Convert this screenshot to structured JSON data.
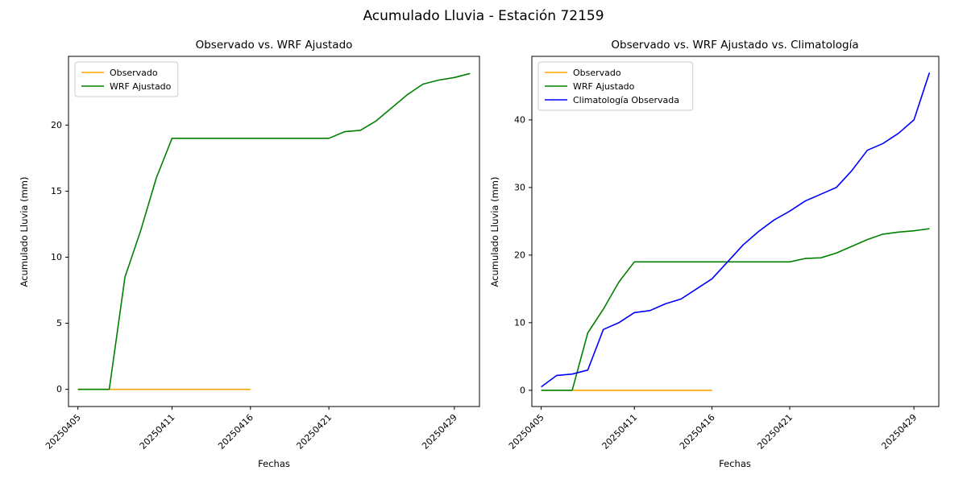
{
  "figure": {
    "title": "Acumulado Lluvia - Estación 72159"
  },
  "chart_data": [
    {
      "type": "line",
      "title": "Observado vs. WRF Ajustado",
      "xlabel": "Fechas",
      "ylabel": "Acumulado Lluvia (mm)",
      "grid": false,
      "legend_position": "upper left",
      "x_dates": [
        "20250405",
        "20250406",
        "20250407",
        "20250408",
        "20250409",
        "20250410",
        "20250411",
        "20250412",
        "20250413",
        "20250414",
        "20250415",
        "20250416",
        "20250417",
        "20250418",
        "20250419",
        "20250420",
        "20250421",
        "20250422",
        "20250423",
        "20250424",
        "20250425",
        "20250426",
        "20250427",
        "20250428",
        "20250429",
        "20250430"
      ],
      "xticks": [
        {
          "label": "20250405",
          "index": 0
        },
        {
          "label": "20250411",
          "index": 6
        },
        {
          "label": "20250416",
          "index": 11
        },
        {
          "label": "20250421",
          "index": 16
        },
        {
          "label": "20250429",
          "index": 24
        }
      ],
      "yticks": [
        0,
        5,
        10,
        15,
        20
      ],
      "xlim": [
        -0.6,
        25.6
      ],
      "ylim": [
        -1.3,
        25.2
      ],
      "series": [
        {
          "name": "Observado",
          "color": "#ffa500",
          "values": [
            0,
            0,
            0,
            0,
            0,
            0,
            0,
            0,
            0,
            0,
            0,
            0
          ]
        },
        {
          "name": "WRF Ajustado",
          "color": "#008000",
          "values": [
            0,
            0,
            0,
            8.5,
            12,
            16,
            19,
            19,
            19,
            19,
            19,
            19,
            19,
            19,
            19,
            19,
            19,
            19.5,
            19.6,
            20.3,
            21.3,
            22.3,
            23.1,
            23.4,
            23.6,
            23.9
          ]
        }
      ]
    },
    {
      "type": "line",
      "title": "Observado vs. WRF Ajustado vs. Climatología",
      "xlabel": "Fechas",
      "ylabel": "Acumulado Lluvia (mm)",
      "grid": false,
      "legend_position": "upper left",
      "x_dates": [
        "20250405",
        "20250406",
        "20250407",
        "20250408",
        "20250409",
        "20250410",
        "20250411",
        "20250412",
        "20250413",
        "20250414",
        "20250415",
        "20250416",
        "20250417",
        "20250418",
        "20250419",
        "20250420",
        "20250421",
        "20250422",
        "20250423",
        "20250424",
        "20250425",
        "20250426",
        "20250427",
        "20250428",
        "20250429",
        "20250430"
      ],
      "xticks": [
        {
          "label": "20250405",
          "index": 0
        },
        {
          "label": "20250411",
          "index": 6
        },
        {
          "label": "20250416",
          "index": 11
        },
        {
          "label": "20250421",
          "index": 16
        },
        {
          "label": "20250429",
          "index": 24
        }
      ],
      "yticks": [
        0,
        10,
        20,
        30,
        40
      ],
      "xlim": [
        -0.6,
        25.6
      ],
      "ylim": [
        -2.4,
        49.4
      ],
      "series": [
        {
          "name": "Observado",
          "color": "#ffa500",
          "values": [
            0,
            0,
            0,
            0,
            0,
            0,
            0,
            0,
            0,
            0,
            0,
            0
          ]
        },
        {
          "name": "WRF Ajustado",
          "color": "#008000",
          "values": [
            0,
            0,
            0,
            8.5,
            12,
            16,
            19,
            19,
            19,
            19,
            19,
            19,
            19,
            19,
            19,
            19,
            19,
            19.5,
            19.6,
            20.3,
            21.3,
            22.3,
            23.1,
            23.4,
            23.6,
            23.9
          ]
        },
        {
          "name": "Climatología Observada",
          "color": "#0000ff",
          "values": [
            0.5,
            2.2,
            2.4,
            3.0,
            9.0,
            10.0,
            11.5,
            11.8,
            12.8,
            13.5,
            15.0,
            16.5,
            19.0,
            21.5,
            23.5,
            25.2,
            26.5,
            28.0,
            29.0,
            30.0,
            32.5,
            35.5,
            36.5,
            38.0,
            40.0,
            47.0
          ]
        }
      ]
    }
  ]
}
